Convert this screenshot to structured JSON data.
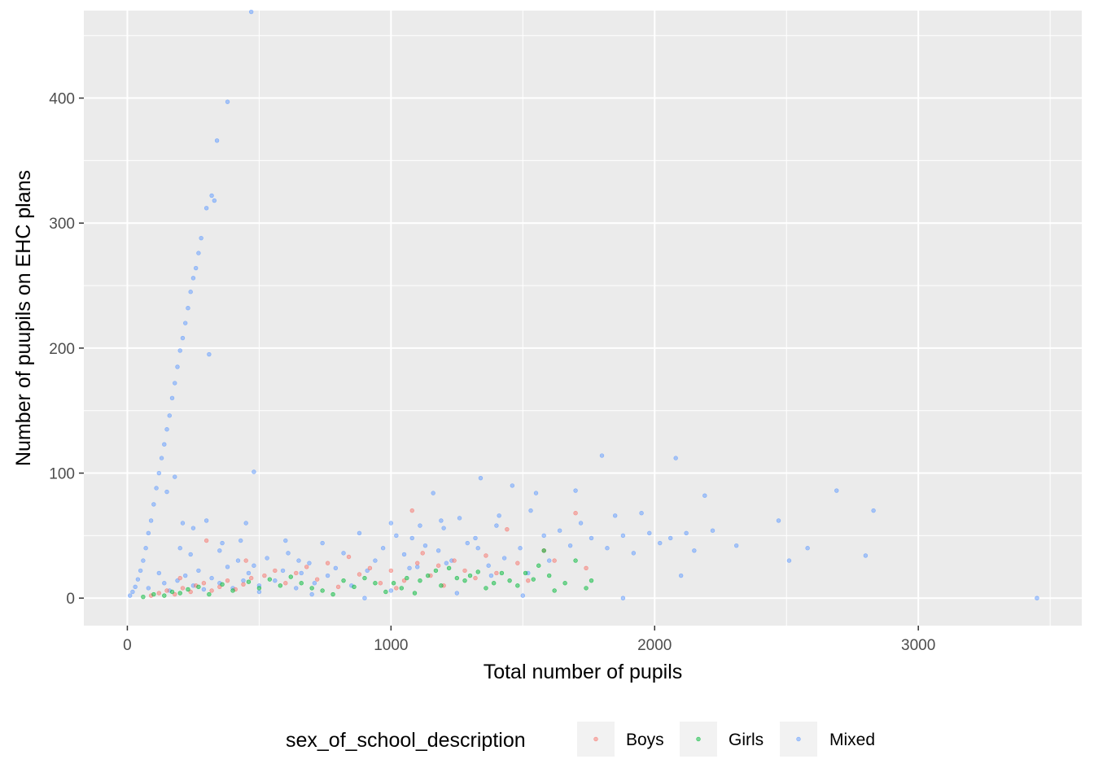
{
  "chart_data": {
    "type": "scatter",
    "title": "",
    "xlabel": "Total number of pupils",
    "ylabel": "Number of puupils on EHC plans",
    "xlim": [
      -165,
      3620
    ],
    "ylim": [
      -22,
      470
    ],
    "x_ticks": [
      0,
      1000,
      2000,
      3000
    ],
    "y_ticks": [
      0,
      100,
      200,
      300,
      400
    ],
    "x_tick_labels": [
      "0",
      "1000",
      "2000",
      "3000"
    ],
    "y_tick_labels": [
      "0",
      "100",
      "200",
      "300",
      "400"
    ],
    "grid": true,
    "legend": {
      "title": "sex_of_school_description",
      "position": "bottom",
      "entries": [
        "Boys",
        "Girls",
        "Mixed"
      ]
    },
    "colors": {
      "Boys": "#F8766D",
      "Girls": "#00BA38",
      "Mixed": "#619CFF",
      "panel_background": "#EBEBEB",
      "grid": "#FFFFFF"
    },
    "series": [
      {
        "name": "Boys",
        "points": [
          [
            90,
            2
          ],
          [
            120,
            4
          ],
          [
            150,
            6
          ],
          [
            180,
            3
          ],
          [
            210,
            8
          ],
          [
            240,
            5
          ],
          [
            260,
            10
          ],
          [
            290,
            12
          ],
          [
            320,
            6
          ],
          [
            350,
            9
          ],
          [
            380,
            14
          ],
          [
            410,
            7
          ],
          [
            440,
            11
          ],
          [
            470,
            16
          ],
          [
            520,
            18
          ],
          [
            560,
            22
          ],
          [
            600,
            12
          ],
          [
            640,
            20
          ],
          [
            680,
            25
          ],
          [
            720,
            15
          ],
          [
            760,
            28
          ],
          [
            800,
            9
          ],
          [
            840,
            33
          ],
          [
            880,
            19
          ],
          [
            920,
            24
          ],
          [
            960,
            12
          ],
          [
            1000,
            22
          ],
          [
            1020,
            8
          ],
          [
            1050,
            14
          ],
          [
            1080,
            70
          ],
          [
            1100,
            28
          ],
          [
            1120,
            36
          ],
          [
            1150,
            18
          ],
          [
            1180,
            26
          ],
          [
            1200,
            10
          ],
          [
            1240,
            30
          ],
          [
            1280,
            22
          ],
          [
            1320,
            16
          ],
          [
            1360,
            34
          ],
          [
            1400,
            20
          ],
          [
            1440,
            55
          ],
          [
            1480,
            28
          ],
          [
            1520,
            14
          ],
          [
            1580,
            38
          ],
          [
            1620,
            30
          ],
          [
            1700,
            68
          ],
          [
            1740,
            24
          ],
          [
            300,
            46
          ],
          [
            200,
            16
          ],
          [
            450,
            30
          ]
        ]
      },
      {
        "name": "Girls",
        "points": [
          [
            60,
            1
          ],
          [
            100,
            3
          ],
          [
            140,
            2
          ],
          [
            170,
            5
          ],
          [
            200,
            4
          ],
          [
            230,
            7
          ],
          [
            270,
            9
          ],
          [
            310,
            3
          ],
          [
            360,
            11
          ],
          [
            400,
            6
          ],
          [
            460,
            13
          ],
          [
            500,
            8
          ],
          [
            540,
            15
          ],
          [
            580,
            10
          ],
          [
            620,
            17
          ],
          [
            660,
            12
          ],
          [
            700,
            8
          ],
          [
            740,
            6
          ],
          [
            780,
            3
          ],
          [
            820,
            14
          ],
          [
            860,
            9
          ],
          [
            900,
            16
          ],
          [
            940,
            12
          ],
          [
            980,
            5
          ],
          [
            1010,
            12
          ],
          [
            1040,
            8
          ],
          [
            1060,
            16
          ],
          [
            1090,
            4
          ],
          [
            1110,
            14
          ],
          [
            1140,
            18
          ],
          [
            1170,
            22
          ],
          [
            1190,
            10
          ],
          [
            1220,
            24
          ],
          [
            1250,
            16
          ],
          [
            1280,
            14
          ],
          [
            1300,
            18
          ],
          [
            1330,
            21
          ],
          [
            1360,
            8
          ],
          [
            1390,
            12
          ],
          [
            1420,
            20
          ],
          [
            1450,
            14
          ],
          [
            1480,
            10
          ],
          [
            1510,
            20
          ],
          [
            1540,
            15
          ],
          [
            1560,
            26
          ],
          [
            1580,
            38
          ],
          [
            1600,
            18
          ],
          [
            1620,
            6
          ],
          [
            1660,
            12
          ],
          [
            1700,
            30
          ],
          [
            1740,
            8
          ],
          [
            1760,
            14
          ]
        ]
      },
      {
        "name": "Mixed",
        "points": [
          [
            10,
            2
          ],
          [
            20,
            5
          ],
          [
            30,
            9
          ],
          [
            40,
            15
          ],
          [
            50,
            22
          ],
          [
            60,
            30
          ],
          [
            70,
            40
          ],
          [
            80,
            52
          ],
          [
            90,
            62
          ],
          [
            100,
            75
          ],
          [
            110,
            88
          ],
          [
            120,
            100
          ],
          [
            130,
            112
          ],
          [
            140,
            123
          ],
          [
            150,
            135
          ],
          [
            160,
            146
          ],
          [
            170,
            160
          ],
          [
            180,
            172
          ],
          [
            190,
            185
          ],
          [
            200,
            198
          ],
          [
            210,
            208
          ],
          [
            220,
            220
          ],
          [
            230,
            232
          ],
          [
            240,
            245
          ],
          [
            250,
            256
          ],
          [
            260,
            264
          ],
          [
            270,
            276
          ],
          [
            280,
            288
          ],
          [
            300,
            312
          ],
          [
            320,
            322
          ],
          [
            330,
            318
          ],
          [
            310,
            195
          ],
          [
            340,
            366
          ],
          [
            380,
            397
          ],
          [
            470,
            469
          ],
          [
            480,
            101
          ],
          [
            180,
            97
          ],
          [
            150,
            85
          ],
          [
            210,
            60
          ],
          [
            250,
            56
          ],
          [
            350,
            38
          ],
          [
            360,
            44
          ],
          [
            300,
            62
          ],
          [
            240,
            35
          ],
          [
            200,
            40
          ],
          [
            120,
            20
          ],
          [
            80,
            8
          ],
          [
            140,
            12
          ],
          [
            160,
            6
          ],
          [
            190,
            14
          ],
          [
            220,
            18
          ],
          [
            250,
            10
          ],
          [
            270,
            22
          ],
          [
            290,
            7
          ],
          [
            320,
            16
          ],
          [
            350,
            12
          ],
          [
            380,
            25
          ],
          [
            400,
            8
          ],
          [
            420,
            30
          ],
          [
            440,
            14
          ],
          [
            460,
            20
          ],
          [
            480,
            26
          ],
          [
            500,
            10
          ],
          [
            530,
            32
          ],
          [
            560,
            14
          ],
          [
            590,
            22
          ],
          [
            610,
            36
          ],
          [
            640,
            8
          ],
          [
            660,
            20
          ],
          [
            690,
            28
          ],
          [
            710,
            12
          ],
          [
            740,
            44
          ],
          [
            760,
            18
          ],
          [
            790,
            24
          ],
          [
            820,
            36
          ],
          [
            850,
            10
          ],
          [
            880,
            52
          ],
          [
            910,
            22
          ],
          [
            940,
            30
          ],
          [
            970,
            40
          ],
          [
            1000,
            60
          ],
          [
            1020,
            50
          ],
          [
            1050,
            35
          ],
          [
            1080,
            48
          ],
          [
            1100,
            25
          ],
          [
            1130,
            42
          ],
          [
            1160,
            84
          ],
          [
            1180,
            38
          ],
          [
            1200,
            56
          ],
          [
            1230,
            30
          ],
          [
            1260,
            64
          ],
          [
            1290,
            44
          ],
          [
            1320,
            48
          ],
          [
            1340,
            96
          ],
          [
            1370,
            26
          ],
          [
            1400,
            58
          ],
          [
            1430,
            32
          ],
          [
            1460,
            90
          ],
          [
            1490,
            40
          ],
          [
            1520,
            20
          ],
          [
            1550,
            84
          ],
          [
            1580,
            50
          ],
          [
            1600,
            30
          ],
          [
            1640,
            54
          ],
          [
            1680,
            42
          ],
          [
            1700,
            86
          ],
          [
            1720,
            60
          ],
          [
            1760,
            48
          ],
          [
            1800,
            114
          ],
          [
            1820,
            40
          ],
          [
            1850,
            66
          ],
          [
            1880,
            50
          ],
          [
            1920,
            36
          ],
          [
            1950,
            68
          ],
          [
            1980,
            52
          ],
          [
            2020,
            44
          ],
          [
            2060,
            48
          ],
          [
            2080,
            112
          ],
          [
            2100,
            18
          ],
          [
            2120,
            52
          ],
          [
            2150,
            38
          ],
          [
            2190,
            82
          ],
          [
            2220,
            54
          ],
          [
            2310,
            42
          ],
          [
            2470,
            62
          ],
          [
            2510,
            30
          ],
          [
            2580,
            40
          ],
          [
            2690,
            86
          ],
          [
            2800,
            34
          ],
          [
            2830,
            70
          ],
          [
            3450,
            0
          ],
          [
            1880,
            0
          ],
          [
            1500,
            2
          ],
          [
            1250,
            4
          ],
          [
            1000,
            6
          ],
          [
            900,
            0
          ],
          [
            700,
            3
          ],
          [
            500,
            5
          ],
          [
            450,
            60
          ],
          [
            430,
            46
          ],
          [
            600,
            46
          ],
          [
            650,
            30
          ],
          [
            1070,
            24
          ],
          [
            1110,
            58
          ],
          [
            1190,
            62
          ],
          [
            1210,
            28
          ],
          [
            1330,
            40
          ],
          [
            1380,
            18
          ],
          [
            1410,
            66
          ],
          [
            1530,
            70
          ]
        ]
      }
    ]
  }
}
